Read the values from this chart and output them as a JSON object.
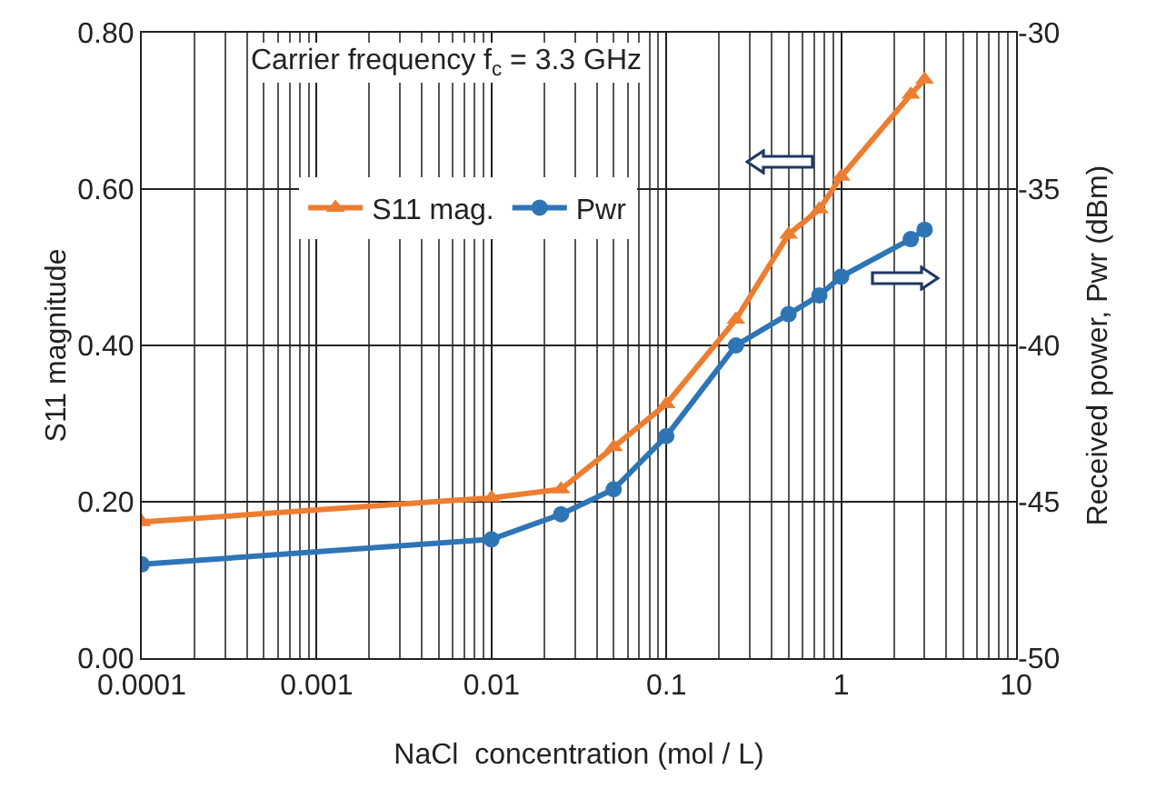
{
  "chart_data": {
    "type": "line",
    "xlabel": "NaCl  concentration (mol / L)",
    "ylabel": "S11 magnitude",
    "y2label": "Received power, Pwr (dBm)",
    "log": "x",
    "grid": true,
    "legend": "top left",
    "xlim": [
      0.0001,
      10
    ],
    "xticks": [
      0.0001,
      0.001,
      0.01,
      0.1,
      1,
      10
    ],
    "ylim": [
      0,
      0.8
    ],
    "yticks": [
      {
        "value": 0,
        "label": "0.00"
      },
      {
        "value": 0.2,
        "label": "0.20"
      },
      {
        "value": 0.4,
        "label": "0.40"
      },
      {
        "value": 0.6,
        "label": "0.60"
      },
      {
        "value": 0.8,
        "label": "0.80"
      }
    ],
    "y2lim": [
      -50,
      -30
    ],
    "y2ticks": [
      -50,
      -45,
      -40,
      -35,
      -30
    ],
    "annotations": [
      "Carrier frequency f$_{c}$ = 3.3 GHz"
    ],
    "series": [
      {
        "name": "S11 mag.",
        "color": "#ed7d31",
        "marker": "triangle",
        "x": [
          0.0001,
          0.01,
          0.025,
          0.05,
          0.1,
          0.25,
          0.5,
          0.75,
          1,
          2.5,
          3
        ],
        "values": [
          0.174,
          0.205,
          0.216,
          0.27,
          0.325,
          0.433,
          0.542,
          0.574,
          0.616,
          0.721,
          0.74
        ]
      },
      {
        "name": "Pwr",
        "color": "#2e75b6",
        "marker": "circle",
        "axis": "y2",
        "x": [
          0.0001,
          0.01,
          0.025,
          0.05,
          0.1,
          0.25,
          0.5,
          0.75,
          1,
          2.5,
          3
        ],
        "values": [
          -47.0,
          -46.2,
          -45.4,
          -44.6,
          -42.9,
          -40.0,
          -39.0,
          -38.4,
          -37.8,
          -36.6,
          -36.3
        ]
      }
    ]
  }
}
